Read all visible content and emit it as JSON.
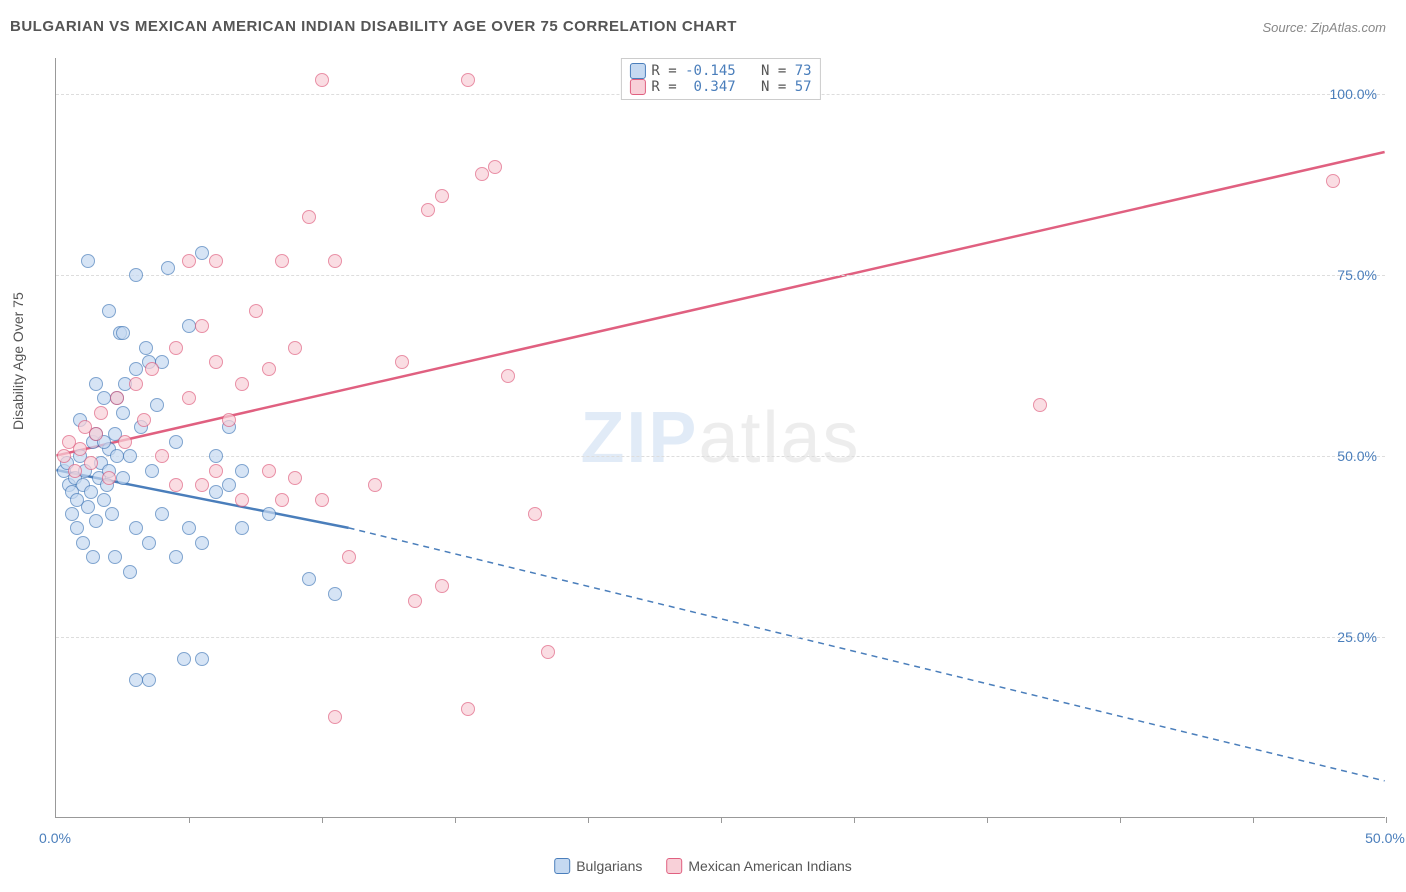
{
  "title": "BULGARIAN VS MEXICAN AMERICAN INDIAN DISABILITY AGE OVER 75 CORRELATION CHART",
  "source": "Source: ZipAtlas.com",
  "ylabel": "Disability Age Over 75",
  "watermark_zip": "ZIP",
  "watermark_atlas": "atlas",
  "chart": {
    "type": "scatter",
    "xlim": [
      0,
      50
    ],
    "ylim": [
      0,
      105
    ],
    "xtick_labels": {
      "0": "0.0%",
      "50": "50.0%"
    },
    "xtick_positions": [
      5,
      10,
      15,
      20,
      25,
      30,
      35,
      40,
      45,
      50
    ],
    "ytick_labels": {
      "25": "25.0%",
      "50": "50.0%",
      "75": "75.0%",
      "100": "100.0%"
    },
    "grid_y": [
      25,
      50,
      75,
      100
    ],
    "background_color": "#ffffff",
    "grid_color": "#dddddd",
    "series": [
      {
        "name": "Bulgarians",
        "color_fill": "#c5d9f1",
        "color_stroke": "#4a7ebb",
        "R": "-0.145",
        "N": "73",
        "trend": {
          "x1": 0,
          "y1": 48,
          "x2": 11,
          "y2": 40,
          "dash_x2": 50,
          "dash_y2": 5,
          "stroke_width": 2.5
        },
        "points": [
          [
            0.3,
            48
          ],
          [
            0.4,
            49
          ],
          [
            0.5,
            46
          ],
          [
            0.6,
            45
          ],
          [
            0.7,
            47
          ],
          [
            0.8,
            44
          ],
          [
            0.9,
            50
          ],
          [
            1.0,
            46
          ],
          [
            1.1,
            48
          ],
          [
            1.2,
            43
          ],
          [
            1.3,
            45
          ],
          [
            1.4,
            52
          ],
          [
            1.5,
            41
          ],
          [
            1.6,
            47
          ],
          [
            1.7,
            49
          ],
          [
            1.8,
            44
          ],
          [
            1.9,
            46
          ],
          [
            2.0,
            51
          ],
          [
            2.1,
            42
          ],
          [
            2.2,
            53
          ],
          [
            2.3,
            58
          ],
          [
            2.4,
            67
          ],
          [
            2.5,
            56
          ],
          [
            2.6,
            60
          ],
          [
            2.8,
            50
          ],
          [
            3.0,
            62
          ],
          [
            3.2,
            54
          ],
          [
            3.4,
            65
          ],
          [
            3.6,
            48
          ],
          [
            3.8,
            57
          ],
          [
            4.0,
            63
          ],
          [
            4.5,
            52
          ],
          [
            5.0,
            68
          ],
          [
            5.5,
            78
          ],
          [
            4.2,
            76
          ],
          [
            3.0,
            40
          ],
          [
            3.5,
            38
          ],
          [
            4.0,
            42
          ],
          [
            4.5,
            36
          ],
          [
            5.0,
            40
          ],
          [
            5.5,
            38
          ],
          [
            6.0,
            45
          ],
          [
            2.0,
            70
          ],
          [
            2.5,
            67
          ],
          [
            1.2,
            77
          ],
          [
            3.0,
            75
          ],
          [
            3.5,
            63
          ],
          [
            1.5,
            60
          ],
          [
            1.8,
            58
          ],
          [
            0.9,
            55
          ],
          [
            6.5,
            46
          ],
          [
            7.0,
            40
          ],
          [
            8.0,
            42
          ],
          [
            9.5,
            33
          ],
          [
            4.8,
            22
          ],
          [
            3.0,
            19
          ],
          [
            3.5,
            19
          ],
          [
            5.5,
            22
          ],
          [
            6.0,
            50
          ],
          [
            6.5,
            54
          ],
          [
            7.0,
            48
          ],
          [
            2.2,
            36
          ],
          [
            2.8,
            34
          ],
          [
            1.0,
            38
          ],
          [
            1.4,
            36
          ],
          [
            0.6,
            42
          ],
          [
            0.8,
            40
          ],
          [
            10.5,
            31
          ],
          [
            1.5,
            53
          ],
          [
            1.8,
            52
          ],
          [
            2.0,
            48
          ],
          [
            2.3,
            50
          ],
          [
            2.5,
            47
          ]
        ]
      },
      {
        "name": "Mexican American Indians",
        "color_fill": "#f8d0d8",
        "color_stroke": "#e06080",
        "R": "0.347",
        "N": "57",
        "trend": {
          "x1": 0,
          "y1": 50,
          "x2": 50,
          "y2": 92,
          "stroke_width": 2.5
        },
        "points": [
          [
            0.3,
            50
          ],
          [
            0.5,
            52
          ],
          [
            0.7,
            48
          ],
          [
            0.9,
            51
          ],
          [
            1.1,
            54
          ],
          [
            1.3,
            49
          ],
          [
            1.5,
            53
          ],
          [
            1.7,
            56
          ],
          [
            2.0,
            47
          ],
          [
            2.3,
            58
          ],
          [
            2.6,
            52
          ],
          [
            3.0,
            60
          ],
          [
            3.3,
            55
          ],
          [
            3.6,
            62
          ],
          [
            4.0,
            50
          ],
          [
            4.5,
            65
          ],
          [
            5.0,
            58
          ],
          [
            5.5,
            68
          ],
          [
            6.0,
            63
          ],
          [
            6.5,
            55
          ],
          [
            7.0,
            60
          ],
          [
            7.5,
            70
          ],
          [
            8.0,
            62
          ],
          [
            8.5,
            77
          ],
          [
            9.0,
            65
          ],
          [
            9.5,
            83
          ],
          [
            10.0,
            102
          ],
          [
            10.5,
            77
          ],
          [
            5.0,
            77
          ],
          [
            6.0,
            77
          ],
          [
            4.5,
            46
          ],
          [
            5.5,
            46
          ],
          [
            6.0,
            48
          ],
          [
            7.0,
            44
          ],
          [
            8.0,
            48
          ],
          [
            8.5,
            44
          ],
          [
            9.0,
            47
          ],
          [
            10.0,
            44
          ],
          [
            11.0,
            36
          ],
          [
            12.0,
            46
          ],
          [
            13.0,
            63
          ],
          [
            14.0,
            84
          ],
          [
            14.5,
            86
          ],
          [
            15.5,
            102
          ],
          [
            16.0,
            89
          ],
          [
            16.5,
            90
          ],
          [
            18.0,
            42
          ],
          [
            18.5,
            23
          ],
          [
            13.5,
            30
          ],
          [
            14.5,
            32
          ],
          [
            10.5,
            14
          ],
          [
            15.5,
            15
          ],
          [
            17.0,
            61
          ],
          [
            26.5,
            102
          ],
          [
            27.0,
            102
          ],
          [
            37.0,
            57
          ],
          [
            48.0,
            88
          ]
        ]
      }
    ]
  },
  "legend_top": {
    "r_label": "R =",
    "n_label": "N ="
  },
  "legend_bottom": {
    "items": [
      "Bulgarians",
      "Mexican American Indians"
    ]
  }
}
